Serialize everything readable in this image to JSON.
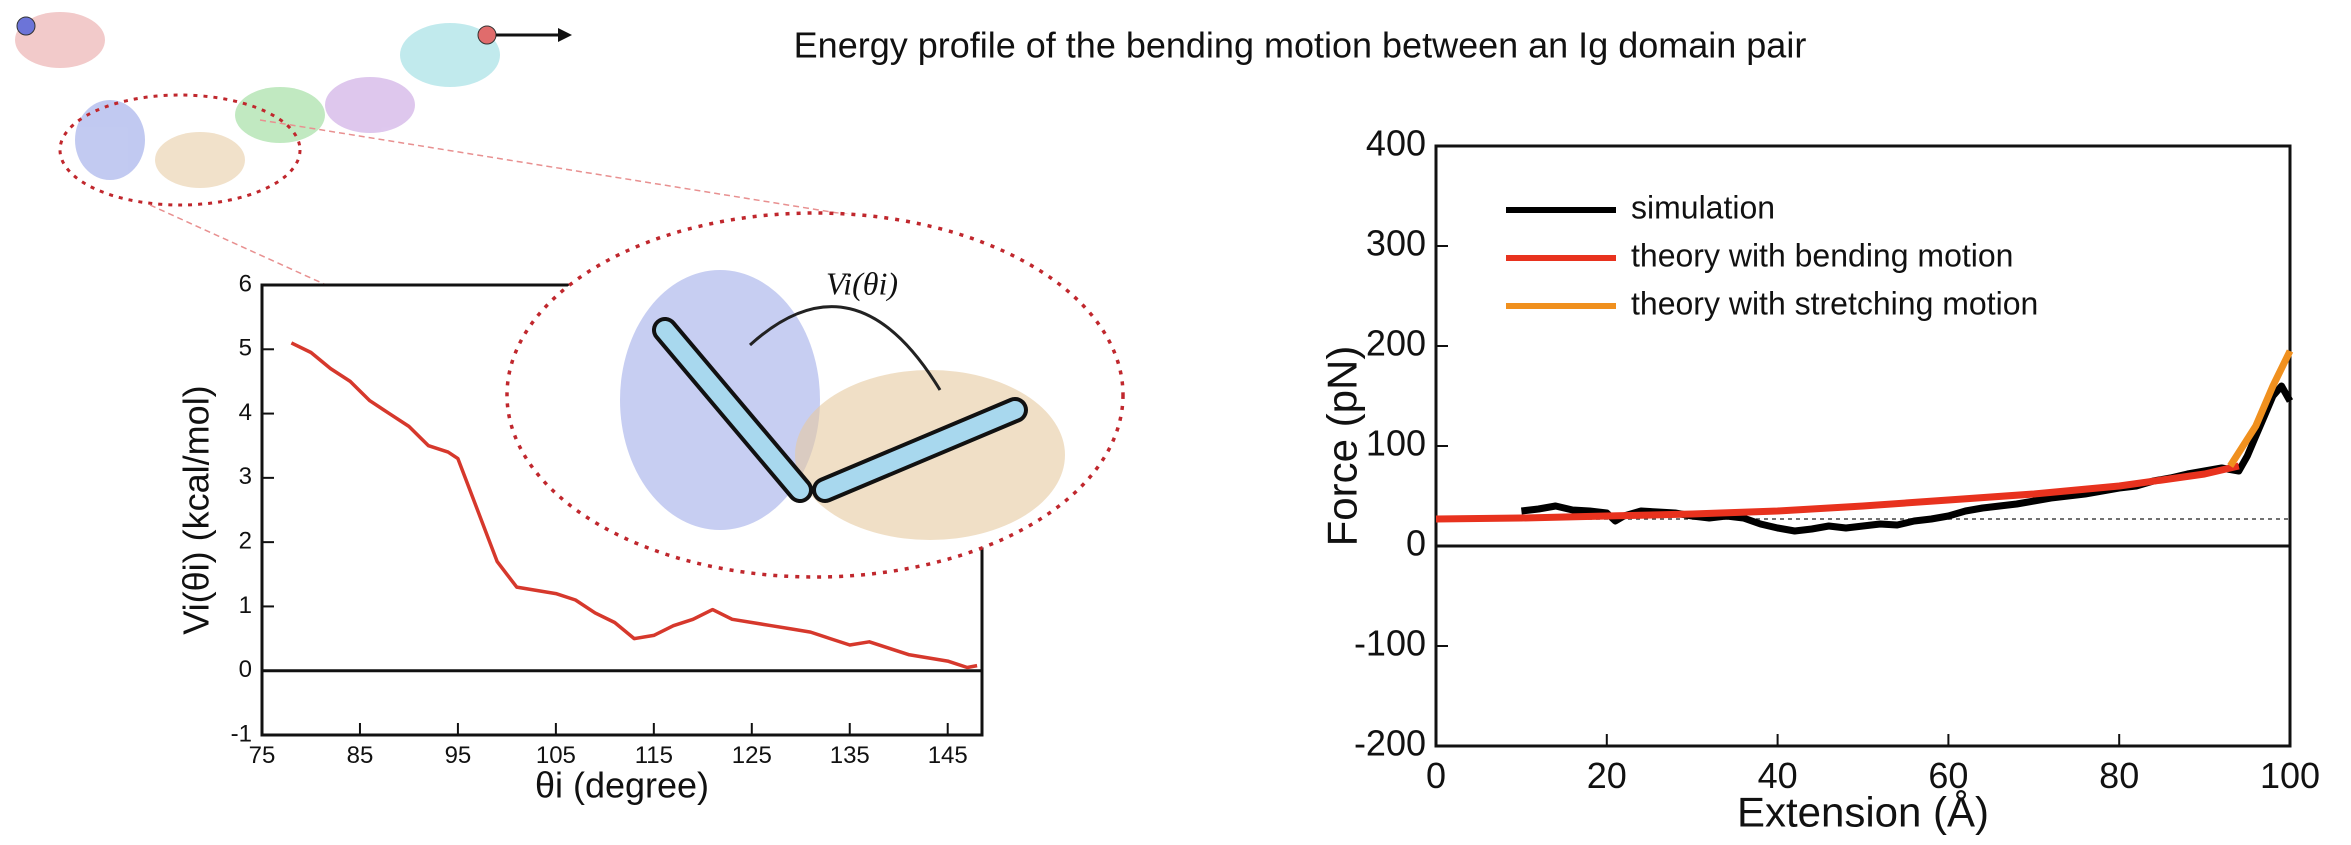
{
  "title": "Energy profile of the bending motion between an Ig domain pair",
  "annotation": "Vi(θi)",
  "chart_data": [
    {
      "type": "line",
      "x_label": "θi (degree)",
      "y_label": "Vi(θi) (kcal/mol)",
      "color": "#d6382c",
      "x": [
        78,
        80,
        82,
        84,
        86,
        88,
        90,
        92,
        94,
        95,
        96,
        97,
        98,
        99,
        100,
        101,
        103,
        105,
        107,
        109,
        111,
        113,
        115,
        117,
        119,
        121,
        123,
        125,
        127,
        129,
        131,
        133,
        135,
        137,
        139,
        141,
        143,
        145,
        147,
        148
      ],
      "values": [
        5.1,
        4.95,
        4.7,
        4.5,
        4.2,
        4.0,
        3.8,
        3.5,
        3.4,
        3.3,
        2.9,
        2.5,
        2.1,
        1.7,
        1.5,
        1.3,
        1.25,
        1.2,
        1.1,
        0.9,
        0.75,
        0.5,
        0.55,
        0.7,
        0.8,
        0.95,
        0.8,
        0.75,
        0.7,
        0.65,
        0.6,
        0.5,
        0.4,
        0.45,
        0.35,
        0.25,
        0.2,
        0.15,
        0.05,
        0.08
      ],
      "xlim": [
        75,
        148.5
      ],
      "xticks": [
        75,
        85,
        95,
        105,
        115,
        125,
        135,
        145
      ],
      "ylim": [
        -1,
        6
      ],
      "yticks": [
        -1,
        0,
        1,
        2,
        3,
        4,
        5,
        6
      ]
    },
    {
      "type": "line",
      "x_label": "Extension (Å)",
      "y_label": "Force (pN)",
      "xlim": [
        0,
        100
      ],
      "xticks": [
        0,
        20,
        40,
        60,
        80,
        100
      ],
      "ylim": [
        -200,
        400
      ],
      "yticks": [
        -200,
        -100,
        0,
        100,
        200,
        300,
        400
      ],
      "reference_line": 27,
      "legend": "upper-left",
      "series": [
        {
          "name": "simulation",
          "color": "#000000",
          "x": [
            10,
            12,
            14,
            16,
            18,
            20,
            21,
            22,
            24,
            26,
            28,
            30,
            32,
            34,
            36,
            38,
            40,
            42,
            44,
            46,
            48,
            50,
            52,
            54,
            56,
            58,
            60,
            62,
            64,
            66,
            68,
            70,
            72,
            74,
            76,
            78,
            80,
            82,
            84,
            86,
            88,
            90,
            92,
            94,
            95,
            96,
            97,
            98,
            99,
            100
          ],
          "values": [
            35,
            37,
            40,
            36,
            35,
            33,
            25,
            30,
            35,
            34,
            33,
            30,
            28,
            30,
            28,
            22,
            18,
            15,
            17,
            20,
            18,
            20,
            22,
            21,
            25,
            27,
            30,
            35,
            38,
            40,
            42,
            45,
            48,
            50,
            52,
            55,
            58,
            60,
            65,
            68,
            72,
            75,
            78,
            75,
            90,
            110,
            130,
            150,
            160,
            145
          ]
        },
        {
          "name": "theory with bending motion",
          "color": "#e8321e",
          "x": [
            0,
            10,
            20,
            30,
            40,
            50,
            60,
            70,
            80,
            90,
            94
          ],
          "values": [
            27,
            28,
            30,
            32,
            35,
            40,
            46,
            52,
            60,
            72,
            80
          ]
        },
        {
          "name": "theory with stretching motion",
          "color": "#f0901e",
          "x": [
            93,
            96,
            98,
            100
          ],
          "values": [
            80,
            120,
            160,
            195
          ]
        }
      ]
    }
  ]
}
